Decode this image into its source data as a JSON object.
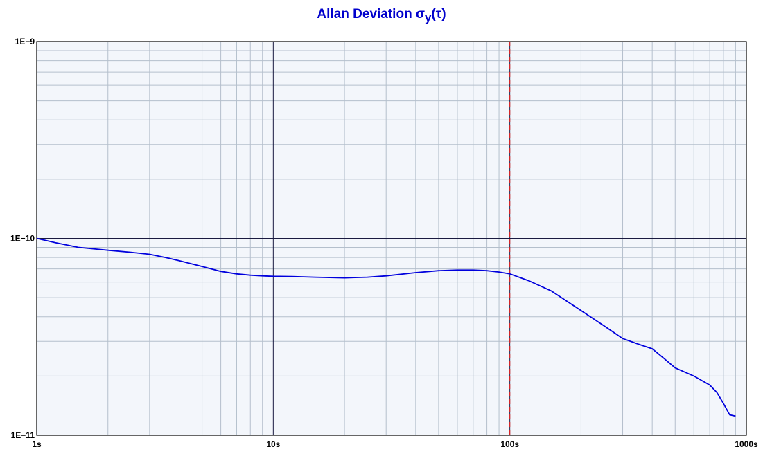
{
  "title": {
    "main": "Allan Deviation σ",
    "subscript": "y",
    "suffix": "(τ)"
  },
  "colors": {
    "plot_bg": "#f3f6fb",
    "minor_grid": "#b4bfcc",
    "major_grid": "#1a1a40",
    "series": "#0000dd",
    "marker_line": "#dd2222",
    "title": "#0000cc"
  },
  "chart_data": {
    "type": "line",
    "title": "Allan Deviation σy(τ)",
    "xlabel": "",
    "ylabel": "",
    "x_scale": "log",
    "y_scale": "log",
    "xlim": [
      1,
      1000
    ],
    "ylim": [
      1e-11,
      1e-09
    ],
    "grid": true,
    "legend": "none",
    "x_ticks": [
      {
        "value": 1,
        "label": "1s"
      },
      {
        "value": 10,
        "label": "10s"
      },
      {
        "value": 100,
        "label": "100s"
      },
      {
        "value": 1000,
        "label": "1000s"
      }
    ],
    "y_ticks": [
      {
        "value": 1e-09,
        "label": "1E−9"
      },
      {
        "value": 1e-10,
        "label": "1E−10"
      },
      {
        "value": 1e-11,
        "label": "1E−11"
      }
    ],
    "vertical_marker": {
      "x": 100,
      "style": "dashed"
    },
    "series": [
      {
        "x": [
          1,
          1.2,
          1.5,
          2,
          2.5,
          3,
          3.5,
          4,
          5,
          6,
          7,
          8,
          9,
          10,
          12,
          15,
          20,
          25,
          30,
          40,
          50,
          60,
          70,
          80,
          90,
          100,
          120,
          150,
          200,
          250,
          300,
          350,
          400,
          450,
          500,
          600,
          700,
          750,
          800,
          850,
          900
        ],
        "y": [
          1e-10,
          9.5e-11,
          9e-11,
          8.7e-11,
          8.5e-11,
          8.3e-11,
          8e-11,
          7.7e-11,
          7.2e-11,
          6.8e-11,
          6.6e-11,
          6.5e-11,
          6.45e-11,
          6.42e-11,
          6.4e-11,
          6.35e-11,
          6.3e-11,
          6.35e-11,
          6.45e-11,
          6.7e-11,
          6.85e-11,
          6.9e-11,
          6.9e-11,
          6.85e-11,
          6.75e-11,
          6.6e-11,
          6.1e-11,
          5.4e-11,
          4.3e-11,
          3.6e-11,
          3.1e-11,
          2.9e-11,
          2.75e-11,
          2.45e-11,
          2.2e-11,
          2e-11,
          1.8e-11,
          1.65e-11,
          1.45e-11,
          1.27e-11,
          1.25e-11
        ]
      }
    ]
  }
}
